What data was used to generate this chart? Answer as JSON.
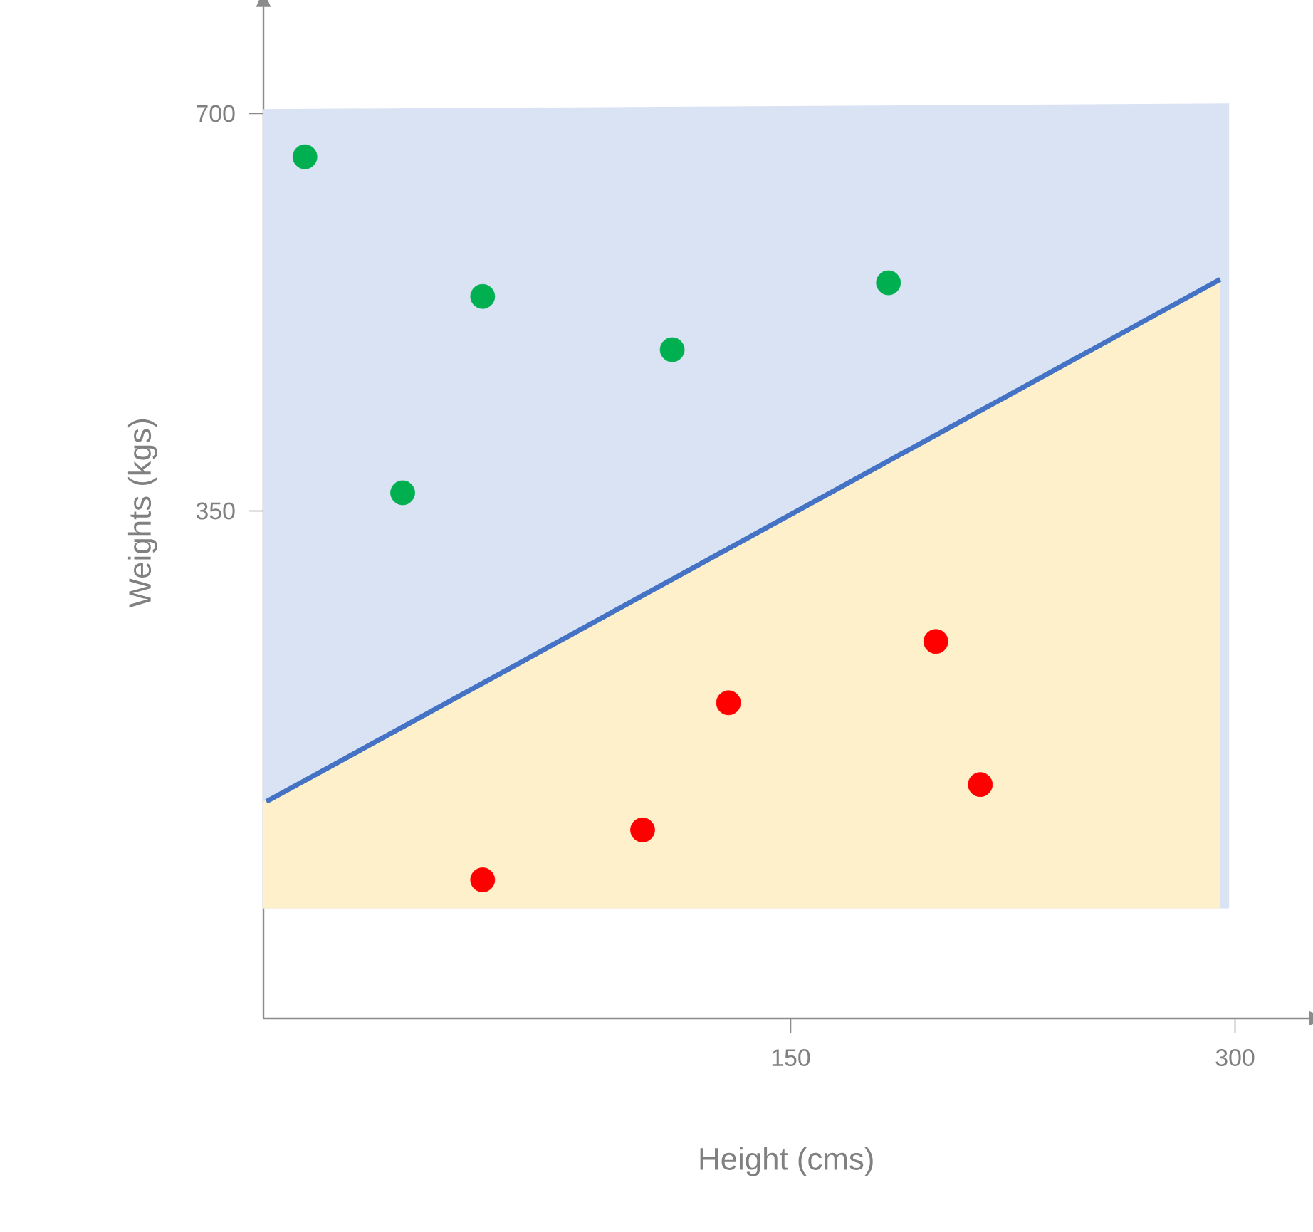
{
  "chart_data": {
    "type": "scatter",
    "xlabel": "Height (cms)",
    "ylabel": "Weights (kgs)",
    "xlim": [
      -28,
      325
    ],
    "ylim": [
      -97,
      794
    ],
    "xticks": [
      150,
      300
    ],
    "yticks": [
      350,
      700
    ],
    "series": [
      {
        "type": "area",
        "color": "#dae3f3",
        "x": [
          -28,
          298
        ],
        "values": [
          704,
          709
        ]
      },
      {
        "type": "area",
        "color": "#fff0cc",
        "x": [
          -28,
          295
        ],
        "values": [
          94,
          554
        ]
      },
      {
        "type": "line",
        "color": "#4472c4",
        "x": [
          -27,
          295
        ],
        "values": [
          94,
          554
        ]
      },
      {
        "color": "#00b050",
        "x": [
          -14,
          46,
          110,
          183,
          19
        ],
        "values": [
          662,
          539,
          492,
          551,
          366
        ]
      },
      {
        "color": "#ff0000",
        "x": [
          46,
          100,
          129,
          199,
          214
        ],
        "values": [
          25,
          69,
          181,
          235,
          109
        ]
      }
    ]
  }
}
